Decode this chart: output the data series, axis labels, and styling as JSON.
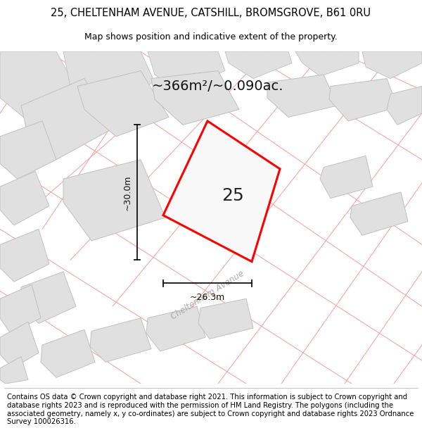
{
  "title": "25, CHELTENHAM AVENUE, CATSHILL, BROMSGROVE, B61 0RU",
  "subtitle": "Map shows position and indicative extent of the property.",
  "area_text": "~366m²/~0.090ac.",
  "plot_number": "25",
  "dim_vertical": "~30.0m",
  "dim_horizontal": "~26.3m",
  "road_label": "Cheltenham Avenue",
  "footer": "Contains OS data © Crown copyright and database right 2021. This information is subject to Crown copyright and database rights 2023 and is reproduced with the permission of HM Land Registry. The polygons (including the associated geometry, namely x, y co-ordinates) are subject to Crown copyright and database rights 2023 Ordnance Survey 100026316.",
  "map_bg": "#f5f5f5",
  "plot_fill": "#eeeeee",
  "plot_outline": "#ff0000",
  "building_fill": "#e0e0e0",
  "building_edge": "#c0c0c0",
  "pink_color": "#f0a0a0",
  "dim_color": "#111111",
  "road_label_color": "#aaaaaa",
  "title_fontsize": 10.5,
  "subtitle_fontsize": 9,
  "area_fontsize": 14,
  "number_fontsize": 18,
  "footer_fontsize": 7.2
}
